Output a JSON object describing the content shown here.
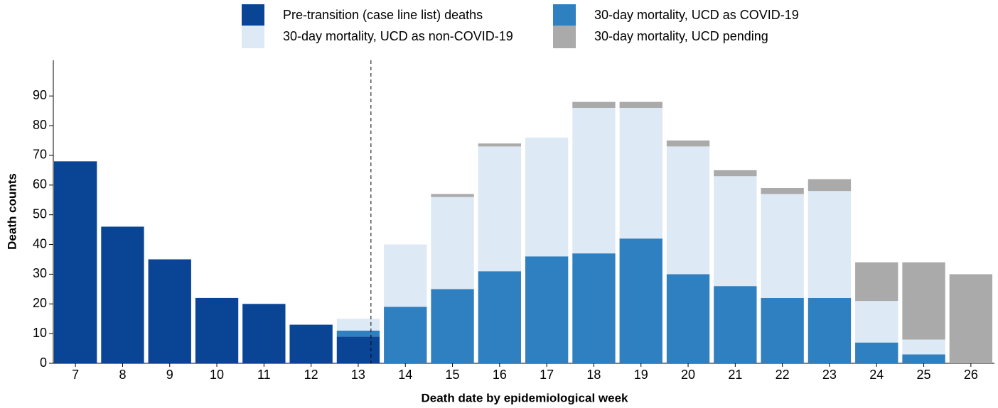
{
  "chart_data": {
    "type": "stacked_bar",
    "x_label": "Death date by epidemiological week",
    "y_label": "Death counts",
    "categories": [
      "7",
      "8",
      "9",
      "10",
      "11",
      "12",
      "13",
      "14",
      "15",
      "16",
      "17",
      "18",
      "19",
      "20",
      "21",
      "22",
      "23",
      "24",
      "25",
      "26"
    ],
    "series": [
      {
        "name": "Pre-transition (case line list) deaths",
        "color": "#0a4595",
        "values": [
          68,
          46,
          35,
          22,
          20,
          13,
          9,
          0,
          0,
          0,
          0,
          0,
          0,
          0,
          0,
          0,
          0,
          0,
          0,
          0
        ]
      },
      {
        "name": "30-day mortality, UCD as COVID-19",
        "color": "#2e80c0",
        "values": [
          0,
          0,
          0,
          0,
          0,
          0,
          2,
          19,
          25,
          31,
          36,
          37,
          42,
          30,
          26,
          22,
          22,
          7,
          3,
          0
        ]
      },
      {
        "name": "30-day mortality, UCD as non-COVID-19",
        "color": "#dde9f5",
        "values": [
          0,
          0,
          0,
          0,
          0,
          0,
          4,
          21,
          31,
          42,
          40,
          49,
          44,
          43,
          37,
          35,
          36,
          14,
          5,
          0
        ]
      },
      {
        "name": "30-day mortality, UCD pending",
        "color": "#aaaaaa",
        "values": [
          0,
          0,
          0,
          0,
          0,
          0,
          0,
          0,
          1,
          1,
          0,
          2,
          2,
          2,
          2,
          2,
          4,
          13,
          26,
          30
        ]
      }
    ],
    "ylim": [
      0,
      102
    ],
    "yticks": [
      0,
      10,
      20,
      30,
      40,
      50,
      60,
      70,
      80,
      90
    ]
  }
}
